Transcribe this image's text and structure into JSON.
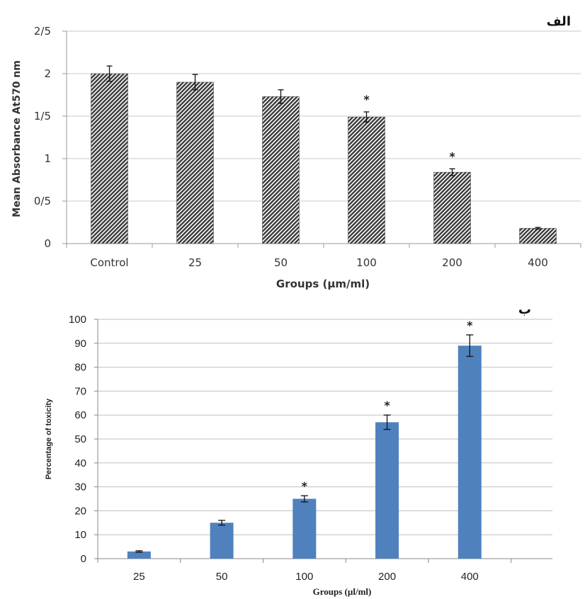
{
  "chart_data": [
    {
      "type": "bar",
      "panel_label": "الف",
      "categories": [
        "Control",
        "25",
        "50",
        "100",
        "200",
        "400"
      ],
      "values": [
        2.0,
        1.9,
        1.73,
        1.49,
        0.84,
        0.18
      ],
      "errors": [
        0.09,
        0.09,
        0.08,
        0.06,
        0.04,
        0.01
      ],
      "significant": [
        false,
        false,
        false,
        true,
        true,
        false
      ],
      "significance_marker": "*",
      "xlabel": "Groups (µm/ml)",
      "ylabel": "Mean Absorbance At570 nm",
      "ylim": [
        0,
        2.5
      ],
      "yticks": [
        "0",
        "0/5",
        "1",
        "1/5",
        "2",
        "2/5"
      ],
      "grid": true,
      "bar_style": "diagonal hatch, dark gray"
    },
    {
      "type": "bar",
      "panel_label": "ب",
      "categories": [
        "25",
        "50",
        "100",
        "200",
        "400"
      ],
      "values": [
        3,
        15,
        25,
        57,
        89
      ],
      "errors": [
        0.3,
        1,
        1.3,
        3,
        4.5
      ],
      "significant": [
        false,
        false,
        true,
        true,
        true
      ],
      "significance_marker": "*",
      "xlabel": "Groups (µl/ml)",
      "ylabel": "Percentage of toxicity",
      "ylim": [
        0,
        100
      ],
      "yticks": [
        "0",
        "10",
        "20",
        "30",
        "40",
        "50",
        "60",
        "70",
        "80",
        "90",
        "100"
      ],
      "grid": true,
      "bar_color": "#4f81bd"
    }
  ]
}
